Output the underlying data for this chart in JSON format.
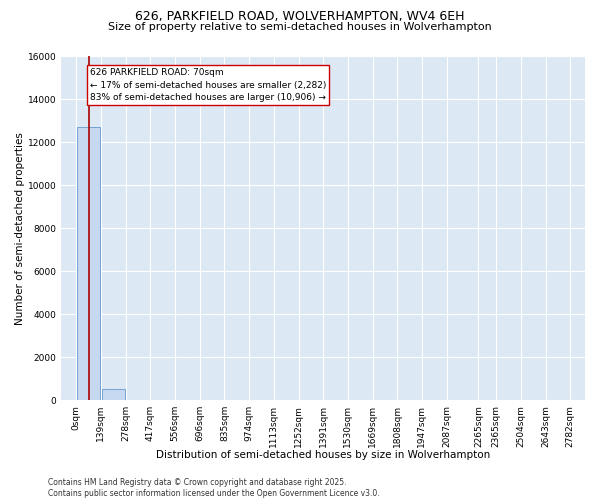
{
  "title_line1": "626, PARKFIELD ROAD, WOLVERHAMPTON, WV4 6EH",
  "title_line2": "Size of property relative to semi-detached houses in Wolverhampton",
  "xlabel": "Distribution of semi-detached houses by size in Wolverhampton",
  "ylabel": "Number of semi-detached properties",
  "footer_line1": "Contains HM Land Registry data © Crown copyright and database right 2025.",
  "footer_line2": "Contains public sector information licensed under the Open Government Licence v3.0.",
  "annotation_title": "626 PARKFIELD ROAD: 70sqm",
  "annotation_line1": "← 17% of semi-detached houses are smaller (2,282)",
  "annotation_line2": "83% of semi-detached houses are larger (10,906) →",
  "property_size": 70,
  "bin_edges": [
    0,
    139,
    278,
    417,
    556,
    696,
    835,
    974,
    1113,
    1252,
    1391,
    1530,
    1669,
    1808,
    1947,
    2087,
    2265,
    2365,
    2504,
    2643,
    2782
  ],
  "bin_labels": [
    "0sqm",
    "139sqm",
    "278sqm",
    "417sqm",
    "556sqm",
    "696sqm",
    "835sqm",
    "974sqm",
    "1113sqm",
    "1252sqm",
    "1391sqm",
    "1530sqm",
    "1669sqm",
    "1808sqm",
    "1947sqm",
    "2087sqm",
    "2265sqm",
    "2365sqm",
    "2504sqm",
    "2643sqm",
    "2782sqm"
  ],
  "bar_heights": [
    12700,
    500,
    0,
    0,
    0,
    0,
    0,
    0,
    0,
    0,
    0,
    0,
    0,
    0,
    0,
    0,
    0,
    0,
    0,
    0
  ],
  "bar_color": "#c5d8f0",
  "bar_edge_color": "#6699cc",
  "vline_color": "#aa0000",
  "vline_x": 70,
  "ylim": [
    0,
    16000
  ],
  "yticks": [
    0,
    2000,
    4000,
    6000,
    8000,
    10000,
    12000,
    14000,
    16000
  ],
  "bg_color": "#dce9f5",
  "grid_color": "#ffffff",
  "annotation_box_edge": "#cc0000",
  "annotation_box_face": "#ffffff",
  "title_fontsize": 9,
  "subtitle_fontsize": 8,
  "axis_label_fontsize": 7.5,
  "tick_fontsize": 6.5,
  "annotation_fontsize": 6.5,
  "footer_fontsize": 5.5
}
